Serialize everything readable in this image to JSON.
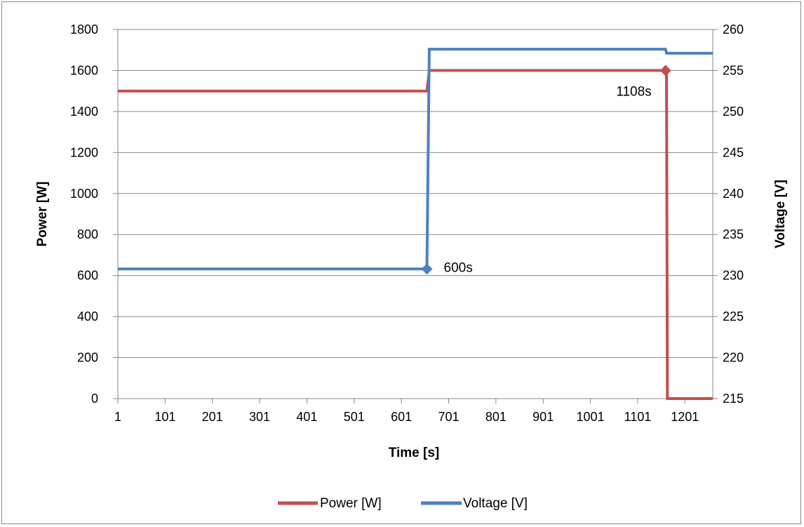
{
  "chart_data": {
    "type": "line",
    "title": "",
    "xlabel": "Time [s]",
    "ylabel": "Power [W]",
    "y2label": "Voltage [V]",
    "xlim": [
      1,
      1260
    ],
    "ylim": [
      0,
      1800
    ],
    "y2lim": [
      215,
      260
    ],
    "x_ticks": [
      1,
      101,
      201,
      301,
      401,
      501,
      601,
      701,
      801,
      901,
      1001,
      1101,
      1201
    ],
    "y_ticks": [
      0,
      200,
      400,
      600,
      800,
      1000,
      1200,
      1400,
      1600,
      1800
    ],
    "y2_ticks": [
      215,
      220,
      225,
      230,
      235,
      240,
      245,
      250,
      255,
      260
    ],
    "grid": "horizontal",
    "legend_position": "bottom",
    "series": [
      {
        "name": "Power [W]",
        "axis": "left",
        "color": "#C0504D",
        "x": [
          1,
          655,
          660,
          1162,
          1164,
          1260
        ],
        "y": [
          1500,
          1500,
          1600,
          1600,
          0,
          0
        ]
      },
      {
        "name": "Voltage [V]",
        "axis": "right",
        "color": "#4F81BD",
        "x": [
          1,
          655,
          660,
          1160,
          1162,
          1260
        ],
        "y": [
          230.8,
          230.8,
          257.6,
          257.6,
          257.1,
          257.1
        ]
      }
    ],
    "annotations": [
      {
        "text": "600s",
        "series": 1,
        "x": 655,
        "y": 230.8,
        "marker_color": "#4F81BD"
      },
      {
        "text": "1108s",
        "series": 0,
        "x": 1160,
        "y": 1600,
        "marker_color": "#C0504D"
      }
    ]
  }
}
